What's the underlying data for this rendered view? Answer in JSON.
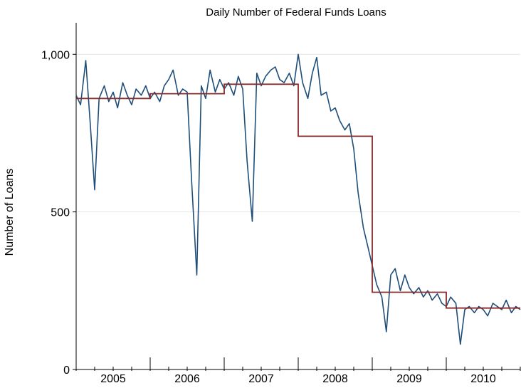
{
  "chart_data": {
    "type": "line",
    "title": "Daily Number of Federal Funds Loans",
    "xlabel": "",
    "ylabel": "Number of Loans",
    "xlim": [
      2004.5,
      2010.5
    ],
    "ylim": [
      0,
      1100
    ],
    "y_ticks": [
      {
        "value": 0,
        "label": "0"
      },
      {
        "value": 500,
        "label": "500"
      },
      {
        "value": 1000,
        "label": "1,000"
      }
    ],
    "x_tick_labels": [
      {
        "value": 2005,
        "label": "2005"
      },
      {
        "value": 2006,
        "label": "2006"
      },
      {
        "value": 2007,
        "label": "2007"
      },
      {
        "value": 2008,
        "label": "2008"
      },
      {
        "value": 2009,
        "label": "2009"
      },
      {
        "value": 2010,
        "label": "2010"
      }
    ],
    "x_major_ticks": [
      2005.5,
      2006.5,
      2007.5,
      2008.5,
      2009.5
    ],
    "grid": "horizontal",
    "legend": "none",
    "series": [
      {
        "style": "daily",
        "color": "#1f4e79",
        "x": [
          2004.5,
          2004.56,
          2004.63,
          2004.69,
          2004.75,
          2004.81,
          2004.88,
          2004.94,
          2005.0,
          2005.06,
          2005.13,
          2005.19,
          2005.25,
          2005.31,
          2005.38,
          2005.44,
          2005.5,
          2005.56,
          2005.63,
          2005.69,
          2005.75,
          2005.81,
          2005.88,
          2005.94,
          2006.0,
          2006.06,
          2006.13,
          2006.19,
          2006.25,
          2006.31,
          2006.38,
          2006.44,
          2006.5,
          2006.56,
          2006.63,
          2006.69,
          2006.75,
          2006.81,
          2006.88,
          2006.94,
          2007.0,
          2007.06,
          2007.13,
          2007.19,
          2007.25,
          2007.31,
          2007.38,
          2007.44,
          2007.5,
          2007.56,
          2007.63,
          2007.69,
          2007.75,
          2007.81,
          2007.88,
          2007.94,
          2008.0,
          2008.06,
          2008.13,
          2008.19,
          2008.25,
          2008.31,
          2008.38,
          2008.44,
          2008.5,
          2008.56,
          2008.63,
          2008.69,
          2008.75,
          2008.81,
          2008.88,
          2008.94,
          2009.0,
          2009.06,
          2009.13,
          2009.19,
          2009.25,
          2009.31,
          2009.38,
          2009.44,
          2009.5,
          2009.56,
          2009.63,
          2009.69,
          2009.75,
          2009.81,
          2009.88,
          2009.94,
          2010.0,
          2010.06,
          2010.13,
          2010.19,
          2010.25,
          2010.31,
          2010.38,
          2010.44,
          2010.5
        ],
        "values": [
          870,
          840,
          980,
          780,
          570,
          860,
          900,
          850,
          880,
          830,
          910,
          870,
          840,
          890,
          870,
          900,
          860,
          880,
          850,
          900,
          920,
          950,
          870,
          890,
          880,
          600,
          300,
          900,
          860,
          950,
          880,
          920,
          890,
          910,
          870,
          930,
          890,
          660,
          470,
          940,
          900,
          930,
          950,
          960,
          920,
          910,
          940,
          900,
          1000,
          910,
          860,
          940,
          990,
          870,
          880,
          820,
          830,
          790,
          760,
          780,
          700,
          560,
          450,
          390,
          330,
          270,
          230,
          120,
          300,
          320,
          250,
          300,
          260,
          240,
          260,
          230,
          250,
          220,
          240,
          210,
          200,
          230,
          210,
          80,
          190,
          200,
          180,
          200,
          190,
          170,
          210,
          200,
          190,
          220,
          180,
          200,
          190
        ]
      },
      {
        "style": "annual-average",
        "color": "#8b2c2c",
        "x": [
          2004.5,
          2005.5,
          2006.5,
          2007.5,
          2008.5,
          2009.5
        ],
        "values": [
          860,
          875,
          905,
          740,
          245,
          195
        ]
      }
    ]
  }
}
